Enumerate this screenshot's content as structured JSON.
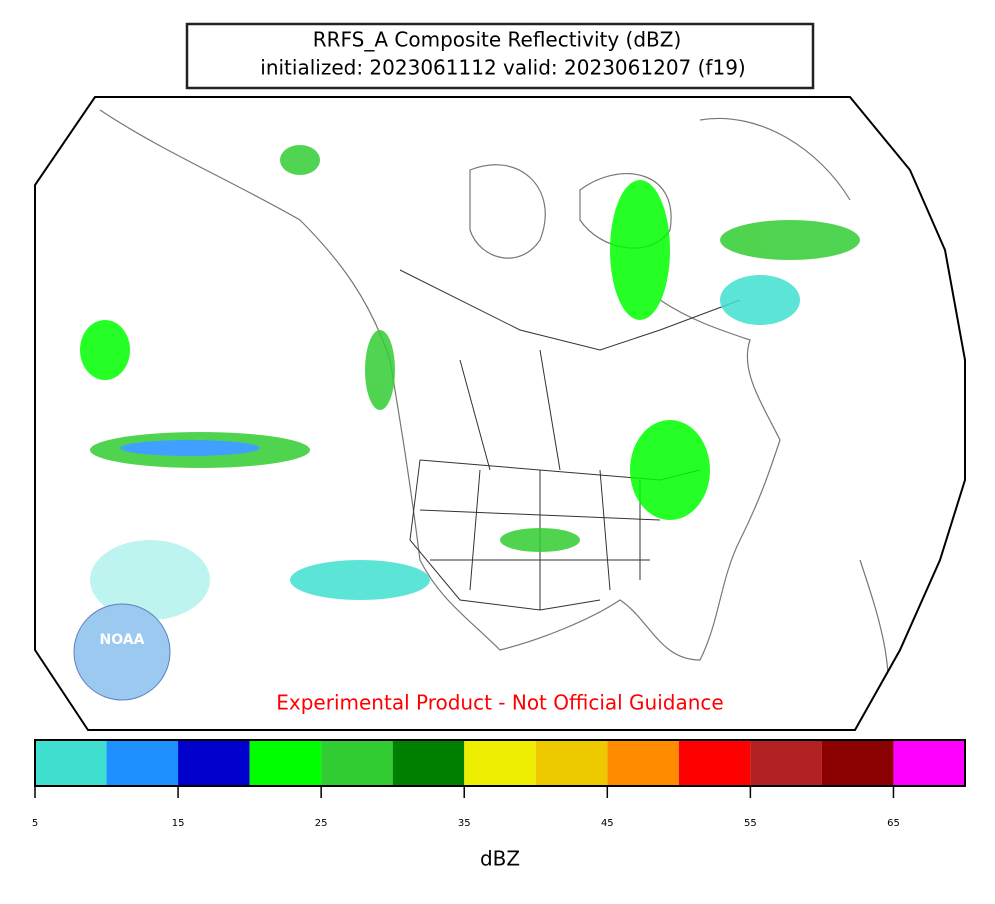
{
  "header": {
    "title": "RRFS_A Composite Reflectivity (dBZ)",
    "subtitle": "initialized: 2023061112 valid: 2023061207 (f19)"
  },
  "map": {
    "watermark": "Experimental Product - Not Official Guidance",
    "logo_text": "NOAA"
  },
  "colorbar": {
    "label": "dBZ",
    "lim": [
      5,
      70
    ],
    "bins": [
      5,
      10,
      15,
      20,
      25,
      30,
      35,
      40,
      45,
      50,
      55,
      60,
      65,
      70
    ],
    "colors": [
      "#40e0d0",
      "#1e90ff",
      "#0000cd",
      "#00ff00",
      "#32cd32",
      "#008000",
      "#eeee00",
      "#eec900",
      "#ff8c00",
      "#ff0000",
      "#b22222",
      "#8b0000",
      "#ff00ff"
    ],
    "ticks": [
      5,
      15,
      25,
      35,
      45,
      55,
      65
    ]
  }
}
